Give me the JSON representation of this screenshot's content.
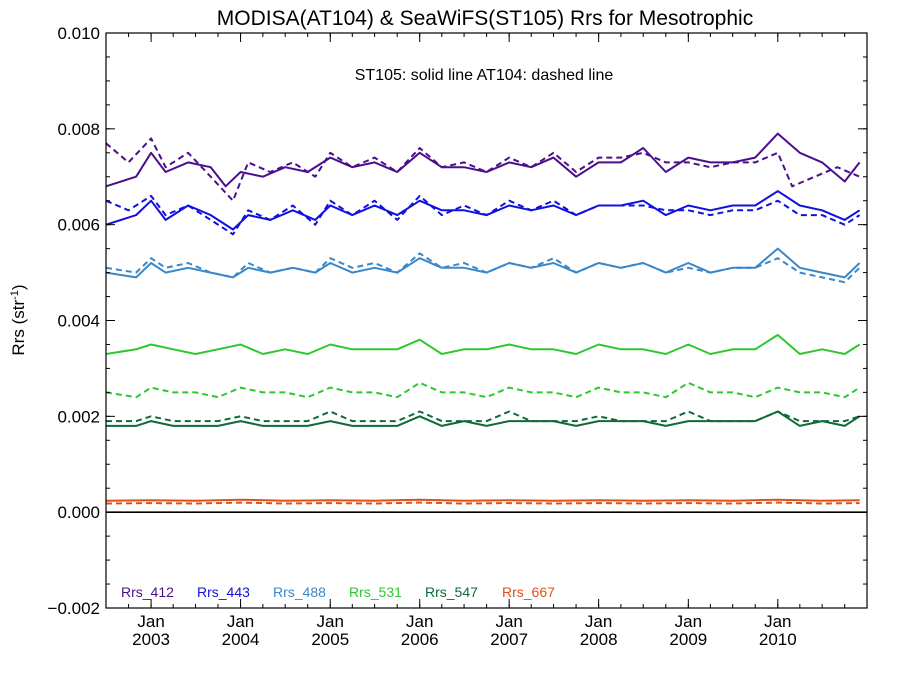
{
  "chart_data": {
    "type": "line",
    "title": "MODISA(AT104) & SeaWiFS(ST105)  Rrs for Mesotrophic",
    "annotation": "ST105: solid line   AT104: dashed line",
    "ylabel": "Rrs (str",
    "ylabel_superscript": "-1",
    "ylabel_suffix": ")",
    "ylim": [
      -0.002,
      0.01
    ],
    "y_ticks": [
      -0.002,
      0.0,
      0.002,
      0.004,
      0.006,
      0.008,
      0.01
    ],
    "y_tick_labels": [
      "−0.002",
      "0.000",
      "0.002",
      "0.004",
      "0.006",
      "0.008",
      "0.010"
    ],
    "xlim": [
      "2002-07-01",
      "2010-12-31"
    ],
    "x_ticks": [
      {
        "month": "Jan",
        "year": "2003",
        "date": "2003-01-01"
      },
      {
        "month": "Jan",
        "year": "2004",
        "date": "2004-01-01"
      },
      {
        "month": "Jan",
        "year": "2005",
        "date": "2005-01-01"
      },
      {
        "month": "Jan",
        "year": "2006",
        "date": "2006-01-01"
      },
      {
        "month": "Jan",
        "year": "2007",
        "date": "2007-01-01"
      },
      {
        "month": "Jan",
        "year": "2008",
        "date": "2008-01-01"
      },
      {
        "month": "Jan",
        "year": "2009",
        "date": "2009-01-01"
      },
      {
        "month": "Jan",
        "year": "2010",
        "date": "2010-01-01"
      }
    ],
    "zero_line": true,
    "grid": false,
    "legend_placement": "bottom-left",
    "series": [
      {
        "name": "Rrs_412",
        "color": "#4b0f8c",
        "solid": {
          "x": [
            "2002-07",
            "2002-11",
            "2003-01",
            "2003-03",
            "2003-06",
            "2003-09",
            "2003-11",
            "2004-01",
            "2004-04",
            "2004-07",
            "2004-10",
            "2005-01",
            "2005-04",
            "2005-07",
            "2005-10",
            "2006-01",
            "2006-04",
            "2006-07",
            "2006-10",
            "2007-01",
            "2007-04",
            "2007-07",
            "2007-10",
            "2008-01",
            "2008-04",
            "2008-07",
            "2008-10",
            "2009-01",
            "2009-04",
            "2009-07",
            "2009-10",
            "2010-01",
            "2010-04",
            "2010-07",
            "2010-10",
            "2010-12"
          ],
          "y": [
            0.0068,
            0.007,
            0.0075,
            0.0071,
            0.0073,
            0.0072,
            0.0068,
            0.0071,
            0.007,
            0.0072,
            0.0071,
            0.0074,
            0.0072,
            0.0073,
            0.0071,
            0.0075,
            0.0072,
            0.0072,
            0.0071,
            0.0073,
            0.0072,
            0.0074,
            0.007,
            0.0073,
            0.0073,
            0.0076,
            0.0071,
            0.0074,
            0.0073,
            0.0073,
            0.0074,
            0.0079,
            0.0075,
            0.0073,
            0.0069,
            0.0073
          ]
        },
        "dashed": {
          "x": [
            "2002-07",
            "2002-10",
            "2003-01",
            "2003-03",
            "2003-06",
            "2003-09",
            "2003-12",
            "2004-02",
            "2004-05",
            "2004-08",
            "2004-11",
            "2005-01",
            "2005-04",
            "2005-07",
            "2005-10",
            "2006-01",
            "2006-04",
            "2006-07",
            "2006-10",
            "2007-01",
            "2007-04",
            "2007-07",
            "2007-10",
            "2008-01",
            "2008-04",
            "2008-07",
            "2008-10",
            "2009-01",
            "2009-04",
            "2009-07",
            "2009-10",
            "2010-01",
            "2010-03",
            "2010-06",
            "2010-09",
            "2010-12"
          ],
          "y": [
            0.0077,
            0.0073,
            0.0078,
            0.0072,
            0.0075,
            0.007,
            0.0065,
            0.0073,
            0.0071,
            0.0073,
            0.007,
            0.0075,
            0.0072,
            0.0074,
            0.0071,
            0.0076,
            0.0072,
            0.0073,
            0.0071,
            0.0074,
            0.0072,
            0.0075,
            0.0071,
            0.0074,
            0.0074,
            0.0075,
            0.0073,
            0.0073,
            0.0072,
            0.0073,
            0.0073,
            0.0075,
            0.0068,
            0.007,
            0.0072,
            0.007
          ]
        }
      },
      {
        "name": "Rrs_443",
        "color": "#1010e0",
        "solid": {
          "x": [
            "2002-07",
            "2002-11",
            "2003-01",
            "2003-03",
            "2003-06",
            "2003-09",
            "2003-12",
            "2004-02",
            "2004-05",
            "2004-08",
            "2004-11",
            "2005-01",
            "2005-04",
            "2005-07",
            "2005-10",
            "2006-01",
            "2006-04",
            "2006-07",
            "2006-10",
            "2007-01",
            "2007-04",
            "2007-07",
            "2007-10",
            "2008-01",
            "2008-04",
            "2008-07",
            "2008-10",
            "2009-01",
            "2009-04",
            "2009-07",
            "2009-10",
            "2010-01",
            "2010-04",
            "2010-07",
            "2010-10",
            "2010-12"
          ],
          "y": [
            0.006,
            0.0062,
            0.0065,
            0.0061,
            0.0064,
            0.0062,
            0.0059,
            0.0062,
            0.0061,
            0.0063,
            0.0061,
            0.0064,
            0.0062,
            0.0064,
            0.0062,
            0.0065,
            0.0063,
            0.0063,
            0.0062,
            0.0064,
            0.0063,
            0.0064,
            0.0062,
            0.0064,
            0.0064,
            0.0065,
            0.0062,
            0.0064,
            0.0063,
            0.0064,
            0.0064,
            0.0067,
            0.0064,
            0.0063,
            0.0061,
            0.0063
          ]
        },
        "dashed": {
          "x": [
            "2002-07",
            "2002-10",
            "2003-01",
            "2003-03",
            "2003-06",
            "2003-09",
            "2003-12",
            "2004-02",
            "2004-05",
            "2004-08",
            "2004-11",
            "2005-01",
            "2005-04",
            "2005-07",
            "2005-10",
            "2006-01",
            "2006-04",
            "2006-07",
            "2006-10",
            "2007-01",
            "2007-04",
            "2007-07",
            "2007-10",
            "2008-01",
            "2008-04",
            "2008-07",
            "2008-10",
            "2009-01",
            "2009-04",
            "2009-07",
            "2009-10",
            "2010-01",
            "2010-04",
            "2010-07",
            "2010-10",
            "2010-12"
          ],
          "y": [
            0.0065,
            0.0063,
            0.0066,
            0.0062,
            0.0064,
            0.0061,
            0.0058,
            0.0063,
            0.0061,
            0.0064,
            0.006,
            0.0065,
            0.0062,
            0.0065,
            0.0061,
            0.0066,
            0.0062,
            0.0064,
            0.0062,
            0.0065,
            0.0063,
            0.0065,
            0.0062,
            0.0064,
            0.0064,
            0.0064,
            0.0063,
            0.0063,
            0.0062,
            0.0063,
            0.0063,
            0.0065,
            0.0062,
            0.0062,
            0.006,
            0.0062
          ]
        }
      },
      {
        "name": "Rrs_488",
        "color": "#3a88c8",
        "solid": {
          "x": [
            "2002-07",
            "2002-11",
            "2003-01",
            "2003-03",
            "2003-06",
            "2003-09",
            "2003-12",
            "2004-02",
            "2004-05",
            "2004-08",
            "2004-11",
            "2005-01",
            "2005-04",
            "2005-07",
            "2005-10",
            "2006-01",
            "2006-04",
            "2006-07",
            "2006-10",
            "2007-01",
            "2007-04",
            "2007-07",
            "2007-10",
            "2008-01",
            "2008-04",
            "2008-07",
            "2008-10",
            "2009-01",
            "2009-04",
            "2009-07",
            "2009-10",
            "2010-01",
            "2010-04",
            "2010-07",
            "2010-10",
            "2010-12"
          ],
          "y": [
            0.005,
            0.0049,
            0.0052,
            0.005,
            0.0051,
            0.005,
            0.0049,
            0.0051,
            0.005,
            0.0051,
            0.005,
            0.0052,
            0.005,
            0.0051,
            0.005,
            0.0053,
            0.0051,
            0.0051,
            0.005,
            0.0052,
            0.0051,
            0.0052,
            0.005,
            0.0052,
            0.0051,
            0.0052,
            0.005,
            0.0052,
            0.005,
            0.0051,
            0.0051,
            0.0055,
            0.0051,
            0.005,
            0.0049,
            0.0052
          ]
        },
        "dashed": {
          "x": [
            "2002-07",
            "2002-11",
            "2003-01",
            "2003-03",
            "2003-06",
            "2003-09",
            "2003-12",
            "2004-02",
            "2004-05",
            "2004-08",
            "2004-11",
            "2005-01",
            "2005-04",
            "2005-07",
            "2005-10",
            "2006-01",
            "2006-04",
            "2006-07",
            "2006-10",
            "2007-01",
            "2007-04",
            "2007-07",
            "2007-10",
            "2008-01",
            "2008-04",
            "2008-07",
            "2008-10",
            "2009-01",
            "2009-04",
            "2009-07",
            "2009-10",
            "2010-01",
            "2010-04",
            "2010-07",
            "2010-10",
            "2010-12"
          ],
          "y": [
            0.0051,
            0.005,
            0.0053,
            0.0051,
            0.0052,
            0.005,
            0.0049,
            0.0052,
            0.005,
            0.0051,
            0.005,
            0.0053,
            0.0051,
            0.0052,
            0.005,
            0.0054,
            0.0051,
            0.0052,
            0.005,
            0.0052,
            0.0051,
            0.0053,
            0.005,
            0.0052,
            0.0051,
            0.0052,
            0.005,
            0.0051,
            0.005,
            0.0051,
            0.0051,
            0.0053,
            0.005,
            0.0049,
            0.0048,
            0.0051
          ]
        }
      },
      {
        "name": "Rrs_531",
        "color": "#2ec82e",
        "solid": {
          "x": [
            "2002-07",
            "2002-11",
            "2003-01",
            "2003-04",
            "2003-07",
            "2003-10",
            "2004-01",
            "2004-04",
            "2004-07",
            "2004-10",
            "2005-01",
            "2005-04",
            "2005-07",
            "2005-10",
            "2006-01",
            "2006-04",
            "2006-07",
            "2006-10",
            "2007-01",
            "2007-04",
            "2007-07",
            "2007-10",
            "2008-01",
            "2008-04",
            "2008-07",
            "2008-10",
            "2009-01",
            "2009-04",
            "2009-07",
            "2009-10",
            "2010-01",
            "2010-04",
            "2010-07",
            "2010-10",
            "2010-12"
          ],
          "y": [
            0.0033,
            0.0034,
            0.0035,
            0.0034,
            0.0033,
            0.0034,
            0.0035,
            0.0033,
            0.0034,
            0.0033,
            0.0035,
            0.0034,
            0.0034,
            0.0034,
            0.0036,
            0.0033,
            0.0034,
            0.0034,
            0.0035,
            0.0034,
            0.0034,
            0.0033,
            0.0035,
            0.0034,
            0.0034,
            0.0033,
            0.0035,
            0.0033,
            0.0034,
            0.0034,
            0.0037,
            0.0033,
            0.0034,
            0.0033,
            0.0035
          ]
        },
        "dashed": {
          "x": [
            "2002-07",
            "2002-11",
            "2003-01",
            "2003-04",
            "2003-07",
            "2003-10",
            "2004-01",
            "2004-04",
            "2004-07",
            "2004-10",
            "2005-01",
            "2005-04",
            "2005-07",
            "2005-10",
            "2006-01",
            "2006-04",
            "2006-07",
            "2006-10",
            "2007-01",
            "2007-04",
            "2007-07",
            "2007-10",
            "2008-01",
            "2008-04",
            "2008-07",
            "2008-10",
            "2009-01",
            "2009-04",
            "2009-07",
            "2009-10",
            "2010-01",
            "2010-04",
            "2010-07",
            "2010-10",
            "2010-12"
          ],
          "y": [
            0.0025,
            0.0024,
            0.0026,
            0.0025,
            0.0025,
            0.0024,
            0.0026,
            0.0025,
            0.0025,
            0.0024,
            0.0026,
            0.0025,
            0.0025,
            0.0024,
            0.0027,
            0.0025,
            0.0025,
            0.0024,
            0.0026,
            0.0025,
            0.0025,
            0.0024,
            0.0026,
            0.0025,
            0.0025,
            0.0024,
            0.0027,
            0.0025,
            0.0025,
            0.0024,
            0.0026,
            0.0025,
            0.0025,
            0.0024,
            0.0026
          ]
        }
      },
      {
        "name": "Rrs_547",
        "color": "#0f6a3a",
        "solid": {
          "x": [
            "2002-07",
            "2002-11",
            "2003-01",
            "2003-04",
            "2003-07",
            "2003-10",
            "2004-01",
            "2004-04",
            "2004-07",
            "2004-10",
            "2005-01",
            "2005-04",
            "2005-07",
            "2005-10",
            "2006-01",
            "2006-04",
            "2006-07",
            "2006-10",
            "2007-01",
            "2007-04",
            "2007-07",
            "2007-10",
            "2008-01",
            "2008-04",
            "2008-07",
            "2008-10",
            "2009-01",
            "2009-04",
            "2009-07",
            "2009-10",
            "2010-01",
            "2010-04",
            "2010-07",
            "2010-10",
            "2010-12"
          ],
          "y": [
            0.0018,
            0.0018,
            0.0019,
            0.0018,
            0.0018,
            0.0018,
            0.0019,
            0.0018,
            0.0018,
            0.0018,
            0.0019,
            0.0018,
            0.0018,
            0.0018,
            0.002,
            0.0018,
            0.0019,
            0.0018,
            0.0019,
            0.0019,
            0.0019,
            0.0018,
            0.0019,
            0.0019,
            0.0019,
            0.0018,
            0.0019,
            0.0019,
            0.0019,
            0.0019,
            0.0021,
            0.0018,
            0.0019,
            0.0018,
            0.002
          ]
        },
        "dashed": {
          "x": [
            "2002-07",
            "2002-11",
            "2003-01",
            "2003-04",
            "2003-07",
            "2003-10",
            "2004-01",
            "2004-04",
            "2004-07",
            "2004-10",
            "2005-01",
            "2005-04",
            "2005-07",
            "2005-10",
            "2006-01",
            "2006-04",
            "2006-07",
            "2006-10",
            "2007-01",
            "2007-04",
            "2007-07",
            "2007-10",
            "2008-01",
            "2008-04",
            "2008-07",
            "2008-10",
            "2009-01",
            "2009-04",
            "2009-07",
            "2009-10",
            "2010-01",
            "2010-04",
            "2010-07",
            "2010-10",
            "2010-12"
          ],
          "y": [
            0.0019,
            0.0019,
            0.002,
            0.0019,
            0.0019,
            0.0019,
            0.002,
            0.0019,
            0.0019,
            0.0019,
            0.0021,
            0.0019,
            0.0019,
            0.0019,
            0.0021,
            0.0019,
            0.0019,
            0.0019,
            0.0021,
            0.0019,
            0.0019,
            0.0019,
            0.002,
            0.0019,
            0.0019,
            0.0019,
            0.0021,
            0.0019,
            0.0019,
            0.0019,
            0.0021,
            0.0019,
            0.0019,
            0.0019,
            0.002
          ]
        }
      },
      {
        "name": "Rrs_667",
        "color": "#e0501a",
        "solid": {
          "x": [
            "2002-07",
            "2003-01",
            "2003-07",
            "2004-01",
            "2004-07",
            "2005-01",
            "2005-07",
            "2006-01",
            "2006-07",
            "2007-01",
            "2007-07",
            "2008-01",
            "2008-07",
            "2009-01",
            "2009-07",
            "2010-01",
            "2010-07",
            "2010-12"
          ],
          "y": [
            0.00024,
            0.00025,
            0.00024,
            0.00026,
            0.00024,
            0.00025,
            0.00024,
            0.00026,
            0.00024,
            0.00025,
            0.00024,
            0.00025,
            0.00024,
            0.00025,
            0.00024,
            0.00026,
            0.00024,
            0.00025
          ]
        },
        "dashed": {
          "x": [
            "2002-07",
            "2003-01",
            "2003-07",
            "2004-01",
            "2004-07",
            "2005-01",
            "2005-07",
            "2006-01",
            "2006-07",
            "2007-01",
            "2007-07",
            "2008-01",
            "2008-07",
            "2009-01",
            "2009-07",
            "2010-01",
            "2010-07",
            "2010-12"
          ],
          "y": [
            0.00018,
            0.00019,
            0.00018,
            0.0002,
            0.00018,
            0.00019,
            0.00018,
            0.0002,
            0.00018,
            0.00019,
            0.00018,
            0.00019,
            0.00018,
            0.00019,
            0.00018,
            0.0002,
            0.00018,
            0.00019
          ]
        }
      }
    ]
  }
}
